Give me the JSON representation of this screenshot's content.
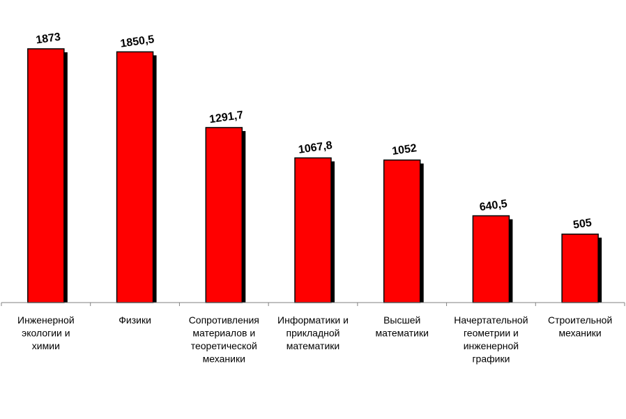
{
  "chart_data": {
    "type": "bar",
    "title": "",
    "xlabel": "",
    "ylabel": "",
    "ylim": [
      0,
      2000
    ],
    "grid": false,
    "legend": "none",
    "categories": [
      "Инженерной экологии и химии",
      "Физики",
      "Сопротивления материалов и теоретической механики",
      "Информатики и прикладной математики",
      "Высшей математики",
      "Начертательной геометрии и инженерной графики",
      "Строительной механики"
    ],
    "category_lines": [
      [
        "Инженерной",
        "экологии и",
        "химии"
      ],
      [
        "Физики"
      ],
      [
        "Сопротивления",
        "материалов и",
        "теоретической",
        "механики"
      ],
      [
        "Информатики и",
        "прикладной",
        "математики"
      ],
      [
        "Высшей",
        "математики"
      ],
      [
        "Начертательной",
        "геометрии и",
        "инженерной",
        "графики"
      ],
      [
        "Строительной",
        "механики"
      ]
    ],
    "values": [
      1873,
      1850.5,
      1291.7,
      1067.8,
      1052,
      640.5,
      505
    ],
    "value_labels": [
      "1873",
      "1850,5",
      "1291,7",
      "1067,8",
      "1052",
      "640,5",
      "505"
    ],
    "colors": {
      "bar": "#ff0000",
      "bar_outline": "#000000",
      "shadow": "#000000",
      "axis": "#808080"
    }
  }
}
